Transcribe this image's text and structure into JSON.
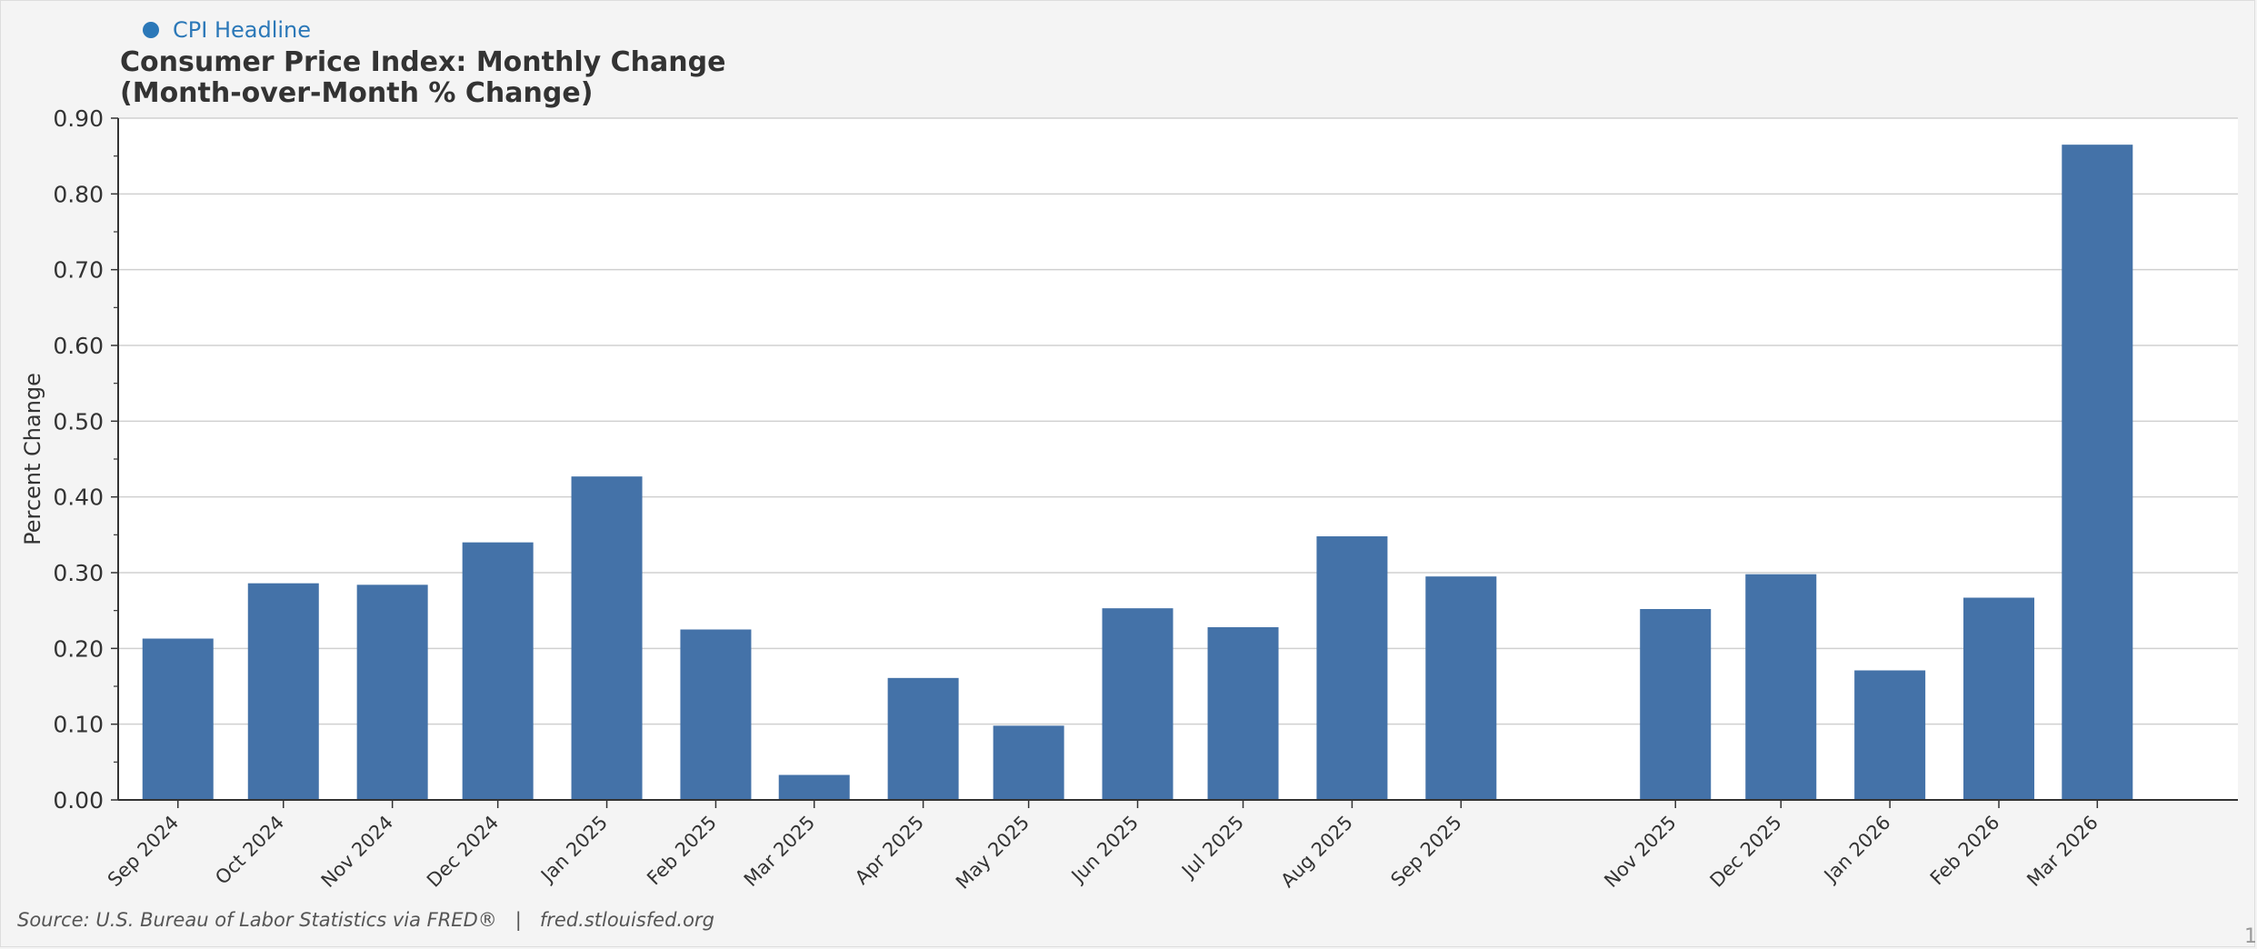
{
  "legend": {
    "label": "CPI Headline",
    "color": "#2b78b8"
  },
  "chart_data": {
    "type": "bar",
    "title": "Consumer Price Index: Monthly Change",
    "subtitle": "(Month-over-Month % Change)",
    "ylabel": "Percent Change",
    "xlabel": "",
    "ylim": [
      0,
      0.9
    ],
    "yticks": [
      "0.00",
      "0.10",
      "0.20",
      "0.30",
      "0.40",
      "0.50",
      "0.60",
      "0.70",
      "0.80",
      "0.90"
    ],
    "grid": true,
    "bar_color": "#4472a8",
    "categories": [
      "Sep 2024",
      "Oct 2024",
      "Nov 2024",
      "Dec 2024",
      "Jan 2025",
      "Feb 2025",
      "Mar 2025",
      "Apr 2025",
      "May 2025",
      "Jun 2025",
      "Jul 2025",
      "Aug 2025",
      "Sep 2025",
      "Nov 2025",
      "Dec 2025",
      "Jan 2026",
      "Feb 2026",
      "Mar 2026"
    ],
    "dates": [
      "2024-09-01",
      "2024-10-01",
      "2024-11-01",
      "2024-12-01",
      "2025-01-01",
      "2025-02-01",
      "2025-03-01",
      "2025-04-01",
      "2025-05-01",
      "2025-06-01",
      "2025-07-01",
      "2025-08-01",
      "2025-09-01",
      "2025-11-01",
      "2025-12-01",
      "2026-01-01",
      "2026-02-01",
      "2026-03-01"
    ],
    "series": [
      {
        "name": "CPI Headline",
        "values": [
          0.213,
          0.286,
          0.284,
          0.34,
          0.427,
          0.225,
          0.033,
          0.161,
          0.098,
          0.253,
          0.228,
          0.348,
          0.295,
          0.252,
          0.298,
          0.171,
          0.267,
          0.865
        ]
      }
    ]
  },
  "source_text": "Source: U.S. Bureau of Labor Statistics via FRED®   |   fred.stlouisfed.org",
  "corner_mark": "1"
}
